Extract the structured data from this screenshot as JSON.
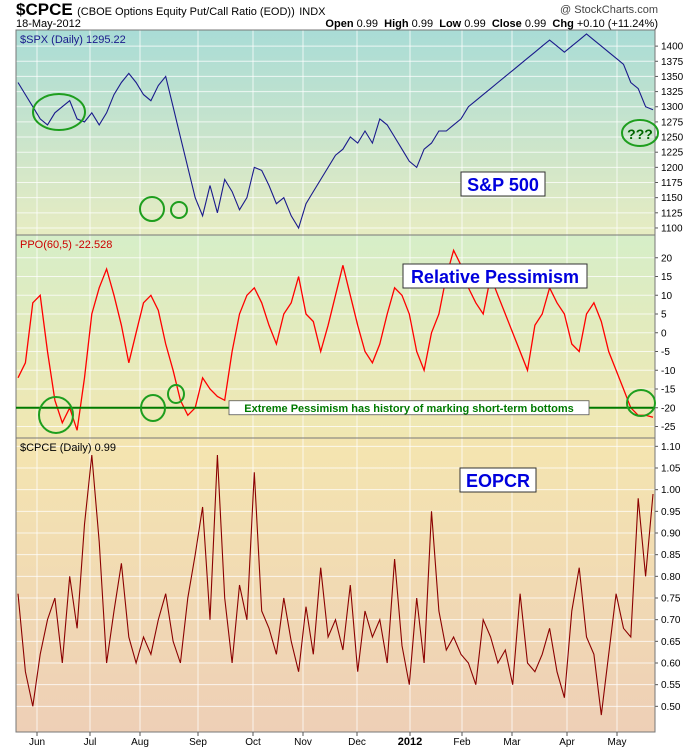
{
  "header": {
    "symbol": "$CPCE",
    "description": "(CBOE Options Equity Put/Call Ratio (EOD))",
    "exchange": "INDX",
    "date": "18-May-2012",
    "credit": "@ StockCharts.com",
    "open_label": "Open",
    "open": "0.99",
    "high_label": "High",
    "high": "0.99",
    "low_label": "Low",
    "low": "0.99",
    "close_label": "Close",
    "close": "0.99",
    "chg_label": "Chg",
    "chg": "+0.10 (+11.24%)"
  },
  "colors": {
    "spx_line": "#1a1a8c",
    "ppo_line": "#ff0000",
    "cpce_line": "#8b0000",
    "threshold": "#007a00",
    "circle": "#1e9e1e",
    "annotation_text": "#0000dd"
  },
  "x_labels": [
    "Jun",
    "Jul",
    "Aug",
    "Sep",
    "Oct",
    "Nov",
    "Dec",
    "2012",
    "Feb",
    "Mar",
    "Apr",
    "May"
  ],
  "chart_data": [
    {
      "type": "line",
      "legend": "$SPX (Daily) 1295.22",
      "annotation": "S&P 500",
      "question": "???",
      "ylim": [
        1095,
        1420
      ],
      "yticks": [
        1100,
        1125,
        1150,
        1175,
        1200,
        1225,
        1250,
        1275,
        1300,
        1325,
        1350,
        1375,
        1400
      ],
      "series": [
        {
          "values": [
            1340,
            1320,
            1300,
            1280,
            1270,
            1290,
            1300,
            1310,
            1280,
            1275,
            1290,
            1270,
            1290,
            1320,
            1340,
            1355,
            1340,
            1320,
            1310,
            1335,
            1350,
            1300,
            1250,
            1200,
            1150,
            1120,
            1170,
            1125,
            1180,
            1160,
            1130,
            1150,
            1200,
            1195,
            1170,
            1140,
            1150,
            1120,
            1100,
            1140,
            1160,
            1180,
            1200,
            1220,
            1230,
            1250,
            1240,
            1260,
            1240,
            1280,
            1270,
            1250,
            1230,
            1210,
            1200,
            1230,
            1240,
            1260,
            1260,
            1270,
            1280,
            1300,
            1310,
            1320,
            1330,
            1340,
            1350,
            1360,
            1370,
            1380,
            1390,
            1400,
            1410,
            1400,
            1390,
            1400,
            1410,
            1420,
            1410,
            1400,
            1390,
            1380,
            1370,
            1340,
            1330,
            1300,
            1295
          ]
        }
      ]
    },
    {
      "type": "line",
      "legend": "PPO(60,5) -22.528",
      "annotation": "Relative Pessimism",
      "threshold": -20,
      "threshold_label": "Extreme Pessimism has history of marking short-term bottoms",
      "ylim": [
        -27,
        25
      ],
      "yticks": [
        -25,
        -20,
        -15,
        -10,
        -5,
        0,
        5,
        10,
        15,
        20
      ],
      "series": [
        {
          "values": [
            -12,
            -8,
            8,
            10,
            -5,
            -18,
            -24,
            -20,
            -26,
            -12,
            5,
            12,
            17,
            10,
            2,
            -8,
            0,
            8,
            10,
            6,
            -3,
            -10,
            -18,
            -22,
            -20,
            -12,
            -15,
            -17,
            -18,
            -5,
            5,
            10,
            12,
            8,
            2,
            -3,
            5,
            8,
            15,
            5,
            3,
            -5,
            2,
            10,
            18,
            10,
            2,
            -5,
            -8,
            -3,
            5,
            12,
            10,
            5,
            -5,
            -10,
            0,
            5,
            15,
            22,
            18,
            12,
            8,
            5,
            15,
            10,
            5,
            0,
            -5,
            -10,
            2,
            5,
            12,
            8,
            5,
            -3,
            -5,
            5,
            8,
            3,
            -5,
            -10,
            -15,
            -20,
            -22,
            -22,
            -22.528
          ]
        }
      ]
    },
    {
      "type": "line",
      "legend": "$CPCE (Daily) 0.99",
      "annotation": "EOPCR",
      "ylim": [
        0.45,
        1.11
      ],
      "yticks": [
        0.5,
        0.55,
        0.6,
        0.65,
        0.7,
        0.75,
        0.8,
        0.85,
        0.9,
        0.95,
        1.0,
        1.05,
        1.1
      ],
      "series": [
        {
          "values": [
            0.76,
            0.58,
            0.5,
            0.62,
            0.7,
            0.75,
            0.6,
            0.8,
            0.68,
            0.92,
            1.08,
            0.88,
            0.6,
            0.72,
            0.83,
            0.66,
            0.6,
            0.66,
            0.62,
            0.7,
            0.76,
            0.65,
            0.6,
            0.75,
            0.85,
            0.96,
            0.7,
            1.08,
            0.75,
            0.6,
            0.78,
            0.7,
            1.04,
            0.72,
            0.68,
            0.62,
            0.75,
            0.65,
            0.58,
            0.73,
            0.62,
            0.82,
            0.66,
            0.7,
            0.63,
            0.78,
            0.58,
            0.72,
            0.66,
            0.7,
            0.6,
            0.84,
            0.64,
            0.55,
            0.75,
            0.6,
            0.95,
            0.72,
            0.63,
            0.66,
            0.62,
            0.6,
            0.55,
            0.7,
            0.66,
            0.6,
            0.63,
            0.55,
            0.76,
            0.6,
            0.58,
            0.62,
            0.68,
            0.58,
            0.52,
            0.72,
            0.82,
            0.66,
            0.62,
            0.48,
            0.62,
            0.76,
            0.68,
            0.66,
            0.98,
            0.8,
            0.99
          ]
        }
      ]
    }
  ]
}
